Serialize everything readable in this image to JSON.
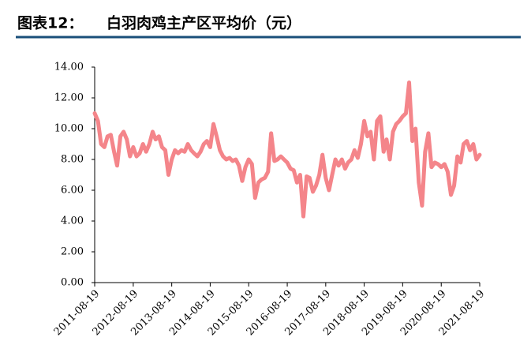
{
  "chart_data": {
    "type": "line",
    "label": "图表12：",
    "title": "白羽肉鸡主产区平均价（元）",
    "color": "#f4858a",
    "xlim": [
      "2011-08-19",
      "2021-08-19"
    ],
    "xticks": [
      "2011-08-19",
      "2012-08-19",
      "2013-08-19",
      "2014-08-19",
      "2015-08-19",
      "2016-08-19",
      "2017-08-19",
      "2018-08-19",
      "2019-08-19",
      "2020-08-19",
      "2021-08-19"
    ],
    "ylim": [
      0,
      14
    ],
    "yticks": [
      {
        "value": 0,
        "label": "0.00"
      },
      {
        "value": 2,
        "label": "2.00"
      },
      {
        "value": 4,
        "label": "4.00"
      },
      {
        "value": 6,
        "label": "6.00"
      },
      {
        "value": 8,
        "label": "8.00"
      },
      {
        "value": 10,
        "label": "10.00"
      },
      {
        "value": 12,
        "label": "12.00"
      },
      {
        "value": 14,
        "label": "14.00"
      }
    ],
    "x": [
      "2011-08-19",
      "2011-09-19",
      "2011-10-19",
      "2011-11-19",
      "2011-12-19",
      "2012-01-19",
      "2012-02-19",
      "2012-03-19",
      "2012-04-19",
      "2012-05-19",
      "2012-06-19",
      "2012-07-19",
      "2012-08-19",
      "2012-09-19",
      "2012-10-19",
      "2012-11-19",
      "2012-12-19",
      "2013-01-19",
      "2013-02-19",
      "2013-03-19",
      "2013-04-19",
      "2013-05-19",
      "2013-06-19",
      "2013-07-19",
      "2013-08-19",
      "2013-09-19",
      "2013-10-19",
      "2013-11-19",
      "2013-12-19",
      "2014-01-19",
      "2014-02-19",
      "2014-03-19",
      "2014-04-19",
      "2014-05-19",
      "2014-06-19",
      "2014-07-19",
      "2014-08-19",
      "2014-09-19",
      "2014-10-19",
      "2014-11-19",
      "2014-12-19",
      "2015-01-19",
      "2015-02-19",
      "2015-03-19",
      "2015-04-19",
      "2015-05-19",
      "2015-06-19",
      "2015-07-19",
      "2015-08-19",
      "2015-09-19",
      "2015-10-19",
      "2015-11-19",
      "2015-12-19",
      "2016-01-19",
      "2016-02-19",
      "2016-03-19",
      "2016-04-19",
      "2016-05-19",
      "2016-06-19",
      "2016-07-19",
      "2016-08-19",
      "2016-09-19",
      "2016-10-19",
      "2016-11-19",
      "2016-12-19",
      "2017-01-19",
      "2017-02-19",
      "2017-03-19",
      "2017-04-19",
      "2017-05-19",
      "2017-06-19",
      "2017-07-19",
      "2017-08-19",
      "2017-09-19",
      "2017-10-19",
      "2017-11-19",
      "2017-12-19",
      "2018-01-19",
      "2018-02-19",
      "2018-03-19",
      "2018-04-19",
      "2018-05-19",
      "2018-06-19",
      "2018-07-19",
      "2018-08-19",
      "2018-09-19",
      "2018-10-19",
      "2018-11-19",
      "2018-12-19",
      "2019-01-19",
      "2019-02-19",
      "2019-03-19",
      "2019-04-19",
      "2019-05-19",
      "2019-06-19",
      "2019-07-19",
      "2019-08-19",
      "2019-09-19",
      "2019-10-19",
      "2019-11-19",
      "2019-12-19",
      "2020-01-19",
      "2020-02-19",
      "2020-03-19",
      "2020-04-19",
      "2020-05-19",
      "2020-06-19",
      "2020-07-19",
      "2020-08-19",
      "2020-09-19",
      "2020-10-19",
      "2020-11-19",
      "2020-12-19",
      "2021-01-19",
      "2021-02-19",
      "2021-03-19",
      "2021-04-19",
      "2021-05-19",
      "2021-06-19",
      "2021-07-19",
      "2021-08-19"
    ],
    "values": [
      11.0,
      10.5,
      9.0,
      8.8,
      9.5,
      9.6,
      8.5,
      7.6,
      9.5,
      9.8,
      9.3,
      8.2,
      8.8,
      8.2,
      8.4,
      9.0,
      8.5,
      9.0,
      9.8,
      9.3,
      9.5,
      8.8,
      8.6,
      7.0,
      8.0,
      8.6,
      8.4,
      8.6,
      8.5,
      9.0,
      8.6,
      8.4,
      8.2,
      8.5,
      9.0,
      9.2,
      8.8,
      10.3,
      9.5,
      8.6,
      8.2,
      8.0,
      8.1,
      7.9,
      8.0,
      7.6,
      6.6,
      7.5,
      8.0,
      7.7,
      5.5,
      6.5,
      6.7,
      6.8,
      7.2,
      9.7,
      7.9,
      8.0,
      8.2,
      8.0,
      7.8,
      7.4,
      7.3,
      6.5,
      7.0,
      4.3,
      6.9,
      6.8,
      5.9,
      6.3,
      7.0,
      8.3,
      6.8,
      6.0,
      7.0,
      8.0,
      7.6,
      8.0,
      7.4,
      7.8,
      8.0,
      8.6,
      8.1,
      9.0,
      10.5,
      9.5,
      9.8,
      8.0,
      10.5,
      10.8,
      8.5,
      9.3,
      8.0,
      9.8,
      10.3,
      10.5,
      10.8,
      11.0,
      13.0,
      9.2,
      10.0,
      6.5,
      5.0,
      8.5,
      9.7,
      7.5,
      7.8,
      7.7,
      7.5,
      7.7,
      7.2,
      5.7,
      6.3,
      8.2,
      7.8,
      9.0,
      9.2,
      8.6,
      9.0,
      8.0,
      8.3
    ]
  }
}
